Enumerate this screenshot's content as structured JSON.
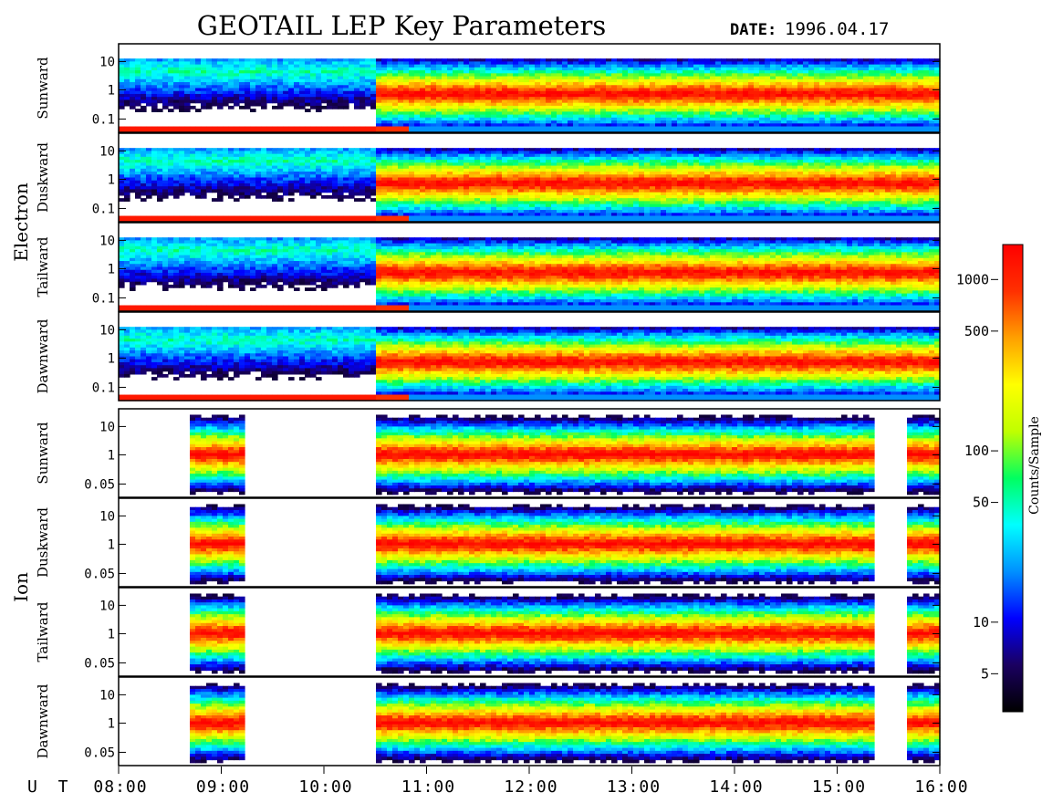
{
  "chart_data": {
    "type": "heatmap",
    "title": "GEOTAIL LEP Key Parameters",
    "date_label": "DATE:",
    "date_value": "1996.04.17",
    "x_axis": {
      "label": "U T",
      "range_hours": [
        8,
        16
      ],
      "ticks": [
        "08:00",
        "09:00",
        "10:00",
        "11:00",
        "12:00",
        "13:00",
        "14:00",
        "15:00",
        "16:00"
      ]
    },
    "groups": [
      {
        "name": "Electron",
        "panels": [
          "Sunward",
          "Duskward",
          "Tailward",
          "Dawnward"
        ],
        "y_ticks": [
          "10",
          "1",
          "0.1"
        ]
      },
      {
        "name": "Ion",
        "panels": [
          "Sunward",
          "Duskward",
          "Tailward",
          "Dawnward"
        ],
        "y_ticks": [
          "10",
          "1",
          "0.05"
        ]
      }
    ],
    "colorbar": {
      "label": "Counts/Sample",
      "scale": "log",
      "range": [
        3,
        1600
      ],
      "ticks": [
        "1000",
        "500",
        "100",
        "50",
        "10",
        "5"
      ],
      "colors": [
        "#000000",
        "#1a0060",
        "#0000ff",
        "#0090ff",
        "#00ffff",
        "#00ff60",
        "#c0ff00",
        "#ffff00",
        "#ffa000",
        "#ff3000",
        "#ff0000"
      ]
    }
  }
}
